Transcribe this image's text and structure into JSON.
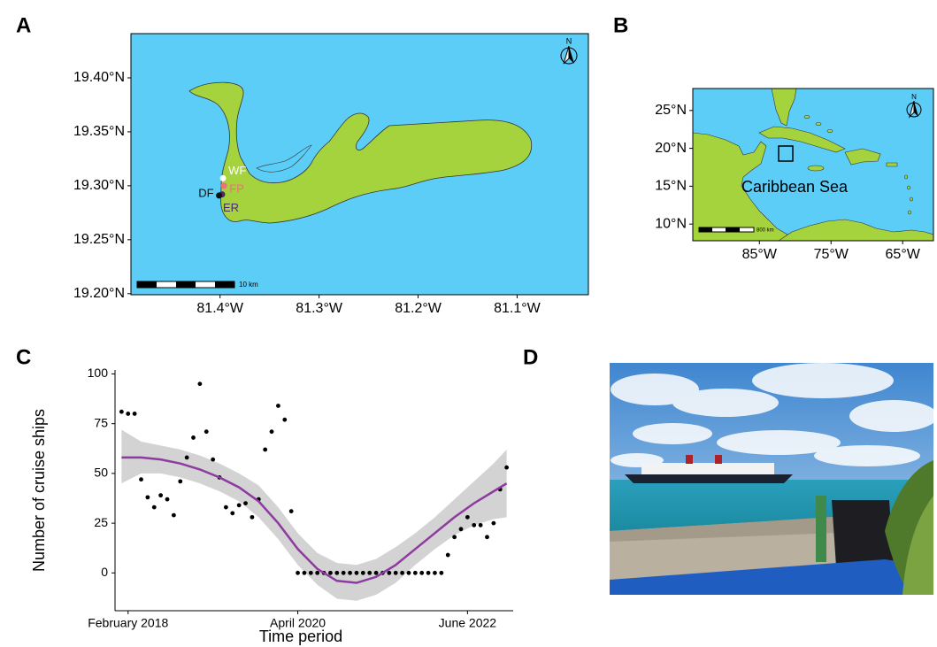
{
  "panel_labels": [
    "A",
    "B",
    "C",
    "D"
  ],
  "maps": [
    {
      "xlim": [
        -81.49,
        -81.028
      ],
      "ylim": [
        19.199,
        19.441
      ],
      "xticks": [
        {
          "value": -81.4,
          "label": "81.4°W"
        },
        {
          "value": -81.3,
          "label": "81.3°W"
        },
        {
          "value": -81.2,
          "label": "81.2°W"
        },
        {
          "value": -81.1,
          "label": "81.1°W"
        }
      ],
      "yticks": [
        {
          "value": 19.2,
          "label": "19.20°N"
        },
        {
          "value": 19.25,
          "label": "19.25°N"
        },
        {
          "value": 19.3,
          "label": "19.30°N"
        },
        {
          "value": 19.35,
          "label": "19.35°N"
        },
        {
          "value": 19.4,
          "label": "19.40°N"
        }
      ],
      "water_color": "#5ccdf7",
      "land_color": "#a5d33e",
      "north": "N",
      "scale_label": "10 km",
      "sites": [
        {
          "label": "WF",
          "color": "#ffffff",
          "lon": -81.397,
          "lat": 19.307
        },
        {
          "label": "FP",
          "color": "#ef6f7c",
          "lon": -81.396,
          "lat": 19.3
        },
        {
          "label": "ER",
          "color": "#4b2a6b",
          "lon": -81.398,
          "lat": 19.292
        },
        {
          "label": "DF",
          "color": "#111111",
          "lon": -81.401,
          "lat": 19.291
        }
      ]
    },
    {
      "xlim": [
        -94.3,
        -60.7
      ],
      "ylim": [
        7.8,
        27.9
      ],
      "xticks": [
        {
          "value": -85,
          "label": "85°W"
        },
        {
          "value": -75,
          "label": "75°W"
        },
        {
          "value": -65,
          "label": "65°W"
        }
      ],
      "yticks": [
        {
          "value": 10,
          "label": "10°N"
        },
        {
          "value": 15,
          "label": "15°N"
        },
        {
          "value": 20,
          "label": "20°N"
        },
        {
          "value": 25,
          "label": "25°N"
        }
      ],
      "water_color": "#5ccdf7",
      "land_color": "#a5d33e",
      "north": "N",
      "scale_label": "800 km",
      "sea_label": "Caribbean Sea"
    }
  ],
  "chart_data": {
    "type": "scatter",
    "x_label": "Time period",
    "y_label": "Number of cruise ships",
    "color": "#000000",
    "xlim": [
      "2017-12",
      "2023-01"
    ],
    "ylim": [
      -19,
      102
    ],
    "xticks": [
      {
        "value": "2018-02",
        "label": "February 2018"
      },
      {
        "value": "2020-04",
        "label": "April 2020"
      },
      {
        "value": "2022-06",
        "label": "June 2022"
      }
    ],
    "yticks": [
      0,
      25,
      50,
      75,
      100
    ],
    "x": [
      "2018-01",
      "2018-02",
      "2018-03",
      "2018-04",
      "2018-05",
      "2018-06",
      "2018-07",
      "2018-08",
      "2018-09",
      "2018-10",
      "2018-11",
      "2018-12",
      "2019-01",
      "2019-02",
      "2019-03",
      "2019-04",
      "2019-05",
      "2019-06",
      "2019-07",
      "2019-08",
      "2019-09",
      "2019-10",
      "2019-11",
      "2019-12",
      "2020-01",
      "2020-02",
      "2020-03",
      "2020-04",
      "2020-05",
      "2020-06",
      "2020-07",
      "2020-08",
      "2020-09",
      "2020-10",
      "2020-11",
      "2020-12",
      "2021-01",
      "2021-02",
      "2021-03",
      "2021-04",
      "2021-05",
      "2021-06",
      "2021-07",
      "2021-08",
      "2021-09",
      "2021-10",
      "2021-11",
      "2021-12",
      "2022-01",
      "2022-02",
      "2022-03",
      "2022-04",
      "2022-05",
      "2022-06",
      "2022-07",
      "2022-08",
      "2022-09",
      "2022-10",
      "2022-11",
      "2022-12"
    ],
    "values": [
      81,
      80,
      80,
      47,
      38,
      33,
      39,
      37,
      29,
      46,
      58,
      68,
      95,
      71,
      57,
      48,
      33,
      30,
      34,
      35,
      28,
      37,
      62,
      71,
      84,
      77,
      31,
      0,
      0,
      0,
      0,
      0,
      0,
      0,
      0,
      0,
      0,
      0,
      0,
      0,
      0,
      0,
      0,
      0,
      0,
      0,
      0,
      0,
      0,
      0,
      9,
      18,
      22,
      28,
      24,
      24,
      18,
      25,
      42,
      53
    ],
    "fit": {
      "color": "#8e3aa0",
      "band_color": "#c8c8c8",
      "x": [
        "2018-01",
        "2018-04",
        "2018-07",
        "2018-10",
        "2019-01",
        "2019-04",
        "2019-07",
        "2019-10",
        "2020-01",
        "2020-04",
        "2020-07",
        "2020-10",
        "2021-01",
        "2021-04",
        "2021-07",
        "2021-10",
        "2022-01",
        "2022-04",
        "2022-07",
        "2022-10",
        "2022-12"
      ],
      "values": [
        58,
        58,
        57,
        55,
        52,
        48,
        43,
        36,
        25,
        12,
        2,
        -4,
        -5,
        -2,
        4,
        12,
        20,
        28,
        35,
        41,
        45
      ],
      "lower": [
        45,
        50,
        50,
        48,
        45,
        41,
        36,
        28,
        17,
        4,
        -6,
        -13,
        -14,
        -11,
        -5,
        4,
        12,
        19,
        24,
        27,
        28
      ],
      "upper": [
        72,
        66,
        64,
        62,
        59,
        55,
        50,
        44,
        33,
        20,
        10,
        5,
        4,
        7,
        13,
        20,
        28,
        37,
        46,
        55,
        62
      ]
    }
  }
}
